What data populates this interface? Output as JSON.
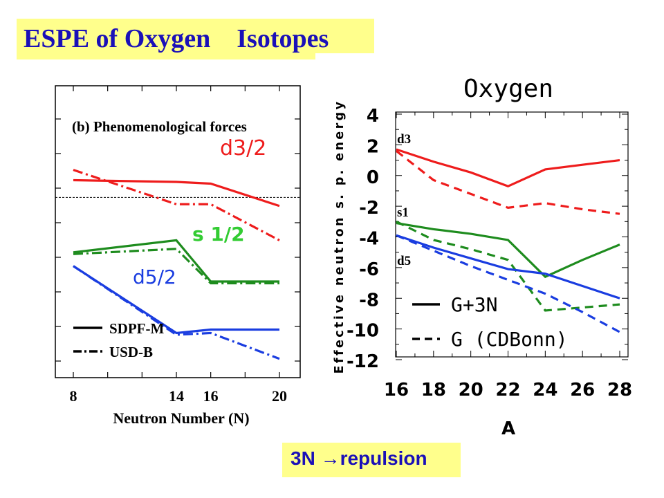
{
  "slide": {
    "title": "ESPE of Oxygen    Isotopes",
    "footer": "3N →repulsion"
  },
  "colors": {
    "red": "#ee1c1c",
    "green": "#1e8c1e",
    "light_green": "#33cc33",
    "blue": "#1a3de0",
    "title_text": "#1b10b8",
    "highlight": "#ffff8c"
  },
  "chart_data": [
    {
      "type": "line",
      "title": "(b) Phenomenological forces",
      "xlabel": "Neutron Number (N)",
      "ylabel": "",
      "xticks": [
        8,
        14,
        16,
        20
      ],
      "xlim": [
        8,
        20
      ],
      "ylim": [
        0,
        8.5
      ],
      "grid": false,
      "reference_line_y": 5.25,
      "legend": {
        "position": "bottom-left",
        "entries": [
          {
            "label": "SDPF-M",
            "style": "solid"
          },
          {
            "label": "USD-B",
            "style": "dash-dot"
          }
        ]
      },
      "series": [
        {
          "name": "d3/2",
          "interaction": "SDPF-M",
          "style": "solid",
          "color": "red",
          "x": [
            8,
            14,
            16,
            20
          ],
          "y": [
            5.75,
            5.7,
            5.65,
            5.0
          ]
        },
        {
          "name": "d3/2",
          "interaction": "USD-B",
          "style": "dash-dot",
          "color": "red",
          "x": [
            8,
            14,
            16,
            20
          ],
          "y": [
            6.05,
            5.05,
            5.05,
            4.0
          ]
        },
        {
          "name": "s 1/2",
          "interaction": "SDPF-M",
          "style": "solid",
          "color": "green",
          "x": [
            8,
            14,
            16,
            20
          ],
          "y": [
            3.65,
            4.0,
            2.8,
            2.8
          ]
        },
        {
          "name": "s 1/2",
          "interaction": "USD-B",
          "style": "dash-dot",
          "color": "green",
          "x": [
            8,
            14,
            16,
            20
          ],
          "y": [
            3.6,
            3.75,
            2.75,
            2.75
          ]
        },
        {
          "name": "d5/2",
          "interaction": "SDPF-M",
          "style": "solid",
          "color": "blue",
          "x": [
            8,
            14,
            16,
            20
          ],
          "y": [
            3.25,
            1.3,
            1.4,
            1.4
          ]
        },
        {
          "name": "d5/2",
          "interaction": "USD-B",
          "style": "dash-dot",
          "color": "blue",
          "x": [
            8,
            14,
            16,
            20
          ],
          "y": [
            3.25,
            1.25,
            1.3,
            0.55
          ]
        }
      ],
      "labels": [
        {
          "text": "d3/2",
          "color": "red"
        },
        {
          "text": "s 1/2",
          "color": "light_green"
        },
        {
          "text": "d5/2",
          "color": "blue"
        }
      ]
    },
    {
      "type": "line",
      "title": "Oxygen",
      "xlabel": "A",
      "ylabel": "Effective neutron s. p. energy",
      "xticks": [
        16,
        18,
        20,
        22,
        24,
        26,
        28
      ],
      "yticks": [
        4,
        2,
        0,
        -2,
        -4,
        -6,
        -8,
        -10,
        -12
      ],
      "xlim": [
        16,
        28
      ],
      "ylim": [
        -12,
        4
      ],
      "grid": false,
      "legend": {
        "position": "bottom-center",
        "entries": [
          {
            "label": "G+3N",
            "style": "solid"
          },
          {
            "label": "G (CDBonn)",
            "style": "dashed"
          }
        ]
      },
      "series": [
        {
          "name": "d3",
          "interaction": "G+3N",
          "style": "solid",
          "color": "red",
          "x": [
            16,
            18,
            20,
            22,
            24,
            26,
            28
          ],
          "y": [
            1.7,
            0.9,
            0.2,
            -0.7,
            0.4,
            0.7,
            1.0
          ]
        },
        {
          "name": "d3",
          "interaction": "G (CDBonn)",
          "style": "dashed",
          "color": "red",
          "x": [
            16,
            18,
            20,
            22,
            24,
            26,
            28
          ],
          "y": [
            1.6,
            -0.3,
            -1.2,
            -2.1,
            -1.8,
            -2.2,
            -2.5
          ]
        },
        {
          "name": "s1",
          "interaction": "G+3N",
          "style": "solid",
          "color": "green",
          "x": [
            16,
            18,
            20,
            22,
            24,
            26,
            28
          ],
          "y": [
            -3.1,
            -3.5,
            -3.8,
            -4.2,
            -6.6,
            -5.5,
            -4.5
          ]
        },
        {
          "name": "s1",
          "interaction": "G (CDBonn)",
          "style": "dashed",
          "color": "green",
          "x": [
            16,
            18,
            20,
            22,
            24,
            26,
            28
          ],
          "y": [
            -3.0,
            -4.2,
            -4.8,
            -5.5,
            -8.8,
            -8.6,
            -8.4
          ]
        },
        {
          "name": "d5",
          "interaction": "G+3N",
          "style": "solid",
          "color": "blue",
          "x": [
            16,
            18,
            20,
            22,
            24,
            26,
            28
          ],
          "y": [
            -3.9,
            -4.7,
            -5.4,
            -6.1,
            -6.4,
            -7.2,
            -8.0
          ]
        },
        {
          "name": "d5",
          "interaction": "G (CDBonn)",
          "style": "dashed",
          "color": "blue",
          "x": [
            16,
            18,
            20,
            22,
            24,
            26,
            28
          ],
          "y": [
            -3.9,
            -4.9,
            -5.9,
            -6.8,
            -7.7,
            -8.9,
            -10.2
          ]
        }
      ],
      "labels": [
        {
          "text": "d3",
          "color": "black"
        },
        {
          "text": "s1",
          "color": "black"
        },
        {
          "text": "d5",
          "color": "black"
        }
      ]
    }
  ]
}
